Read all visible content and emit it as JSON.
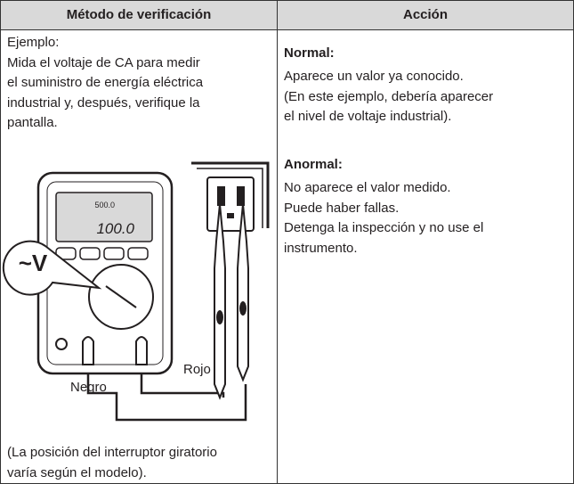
{
  "table": {
    "headers": [
      "Método de verificación",
      "Acción"
    ],
    "left": {
      "lines": [
        "Ejemplo:",
        "Mida el voltaje de CA para medir",
        "el suministro de energía eléctrica",
        "industrial y, después, verifique la",
        "pantalla."
      ],
      "figure": {
        "function_label": "~V",
        "display_small": "500.0",
        "display_main": "100.0",
        "black_label": "Negro",
        "red_label": "Rojo"
      },
      "note": [
        "(La posición del interruptor giratorio",
        "varía según el modelo)."
      ]
    },
    "right": {
      "normal_title": "Normal:",
      "normal_lines": [
        "Aparece un valor ya conocido.",
        "(En este ejemplo, debería aparecer",
        "el nivel de voltaje industrial)."
      ],
      "abnormal_title": "Anormal:",
      "abnormal_lines": [
        "No aparece el valor medido.",
        "Puede haber fallas.",
        "Detenga la inspección y no use el",
        "instrumento."
      ]
    }
  }
}
